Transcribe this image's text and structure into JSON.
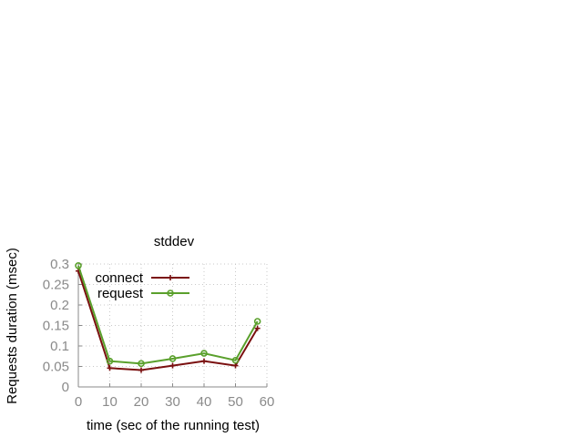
{
  "chart_data": {
    "type": "line",
    "title": "stddev",
    "xlabel": "time (sec of the running test)",
    "ylabel": "Requests duration (msec)",
    "xlim": [
      0,
      60
    ],
    "ylim": [
      0,
      0.3
    ],
    "xticks": [
      0,
      10,
      20,
      30,
      40,
      50,
      60
    ],
    "yticks": [
      0,
      0.05,
      0.1,
      0.15,
      0.2,
      0.25,
      0.3
    ],
    "ytick_labels": [
      "0",
      "0.05",
      "0.1",
      "0.15",
      "0.2",
      "0.25",
      "0.3"
    ],
    "grid": true,
    "legend_position": "top-left",
    "series": [
      {
        "name": "connect",
        "color": "#7a1010",
        "marker": "plus",
        "x": [
          0,
          10,
          20,
          30,
          40,
          50,
          57
        ],
        "values": [
          0.283,
          0.046,
          0.041,
          0.052,
          0.063,
          0.052,
          0.143
        ]
      },
      {
        "name": "request",
        "color": "#5aa02c",
        "marker": "circle",
        "x": [
          0,
          10,
          20,
          30,
          40,
          50,
          57
        ],
        "values": [
          0.296,
          0.063,
          0.057,
          0.069,
          0.082,
          0.065,
          0.16
        ]
      }
    ]
  }
}
